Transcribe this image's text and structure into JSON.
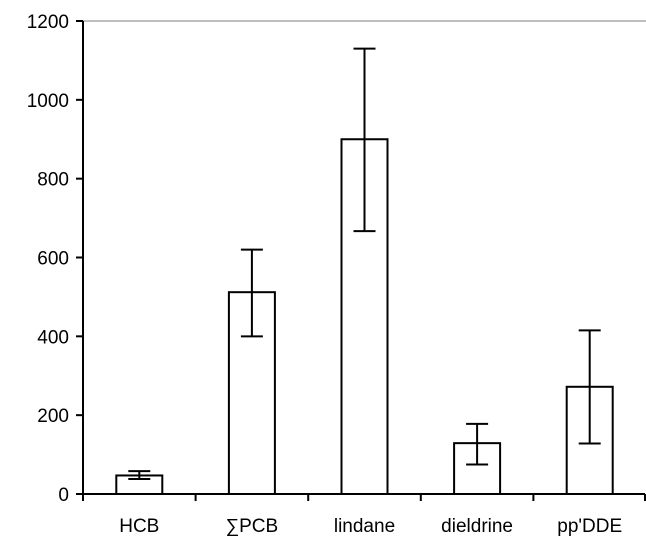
{
  "chart_data": {
    "type": "bar",
    "title": "",
    "xlabel": "",
    "ylabel": "",
    "categories": [
      "HCB",
      "∑PCB",
      "lindane",
      "dieldrine",
      "pp'DDE"
    ],
    "values": [
      47,
      512,
      900,
      129,
      272
    ],
    "error_low": [
      38,
      400,
      667,
      75,
      128
    ],
    "error_high": [
      58,
      620,
      1130,
      178,
      415
    ],
    "ylim": [
      0,
      1200
    ],
    "yticks": [
      0,
      200,
      400,
      600,
      800,
      1000,
      1200
    ],
    "ytick_labels": [
      "0",
      "200",
      "400",
      "600",
      "800",
      "1000",
      "1200"
    ],
    "grid": false,
    "legend": "none",
    "colors": {
      "bar_fill": "#ffffff",
      "bar_stroke": "#000000",
      "axis": "#000000",
      "top_line": "#999999"
    }
  }
}
